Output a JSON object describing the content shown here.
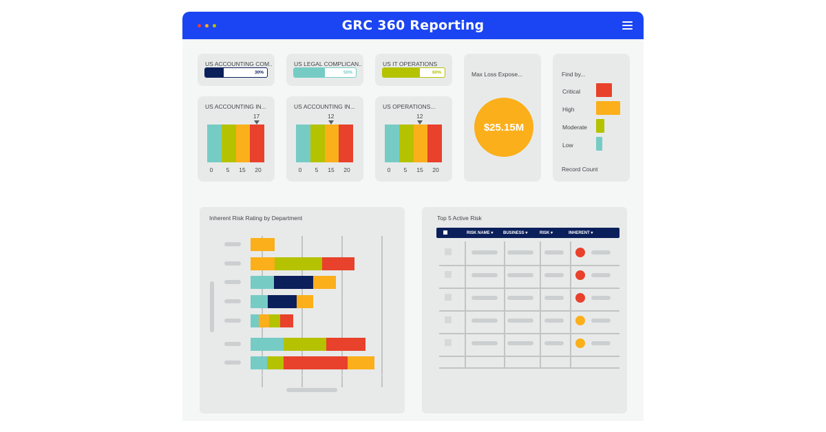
{
  "app": {
    "title": "GRC 360 Reporting",
    "window_dots": [
      "#e8413b",
      "#fbaf1a",
      "#b4c200"
    ]
  },
  "progress_cards": [
    {
      "title": "US ACCOUNTING  COM..",
      "percent": 30,
      "label": "30%",
      "color": "#0b1f5b"
    },
    {
      "title": "US LEGAL COMPLICAN..",
      "percent": 50,
      "label": "50%",
      "color": "#76ccc4"
    },
    {
      "title": "US IT OPERATIONS",
      "percent": 60,
      "label": "60%",
      "color": "#b4c200"
    }
  ],
  "gauge_cards": [
    {
      "title": "US ACCOUNTING  IN...",
      "marker_value": 17,
      "marker_label": "17"
    },
    {
      "title": "US ACCOUNTING  IN...",
      "marker_value": 12,
      "marker_label": "12"
    },
    {
      "title": "US OPERATIONS...",
      "marker_value": 12,
      "marker_label": "12"
    }
  ],
  "gauge_ticks": [
    "0",
    "5",
    "15",
    "20"
  ],
  "gauge_colors": [
    "#76ccc4",
    "#b4c200",
    "#fbaf1a",
    "#e8412c"
  ],
  "max_loss": {
    "title": "Max Loss Expose...",
    "value": "$25.15M"
  },
  "find_by": {
    "title": "Find by...",
    "items": [
      {
        "label": "Critical",
        "color": "#e8412c",
        "level": 0.65
      },
      {
        "label": "High",
        "color": "#fbaf1a",
        "level": 1.0
      },
      {
        "label": "Moderate",
        "color": "#b4c200",
        "level": 0.35
      },
      {
        "label": "Low",
        "color": "#76ccc4",
        "level": 0.25
      }
    ],
    "footer": "Record Count"
  },
  "chart_data": {
    "type": "bar",
    "title": "Inherent Risk Rating by Department",
    "orientation": "horizontal",
    "stacked": true,
    "categories": [
      "",
      "",
      "",
      "",
      "",
      "",
      ""
    ],
    "series": [
      {
        "color": "#76ccc4",
        "values": [
          0,
          0,
          3.4,
          2.5,
          1.2,
          4.8,
          2.4
        ]
      },
      {
        "color": "#fbaf1a",
        "values": [
          3.5,
          3.5,
          0,
          0,
          1.5,
          0,
          0
        ]
      },
      {
        "color": "#b4c200",
        "values": [
          0,
          6.8,
          0,
          0,
          1.6,
          6.1,
          2.4
        ]
      },
      {
        "color": "#0b1f5b",
        "values": [
          0,
          0,
          5.7,
          4.2,
          0,
          0,
          0
        ]
      },
      {
        "color": "#e8412c",
        "values": [
          0,
          4.7,
          0,
          0,
          1.9,
          5.7,
          9.2
        ]
      },
      {
        "color": "#fbaf1a",
        "values": [
          0,
          0,
          3.2,
          2.4,
          0,
          0,
          3.9
        ]
      }
    ],
    "xlim": [
      0,
      19
    ]
  },
  "top_risk": {
    "title": "Top 5 Active Risk",
    "columns": [
      "RISK NAME ▾",
      "BUSINESS ▾",
      "RISK ▾",
      "INHERENT ▾"
    ],
    "rows": [
      {
        "inherent_color": "#e8412c"
      },
      {
        "inherent_color": "#e8412c"
      },
      {
        "inherent_color": "#e8412c"
      },
      {
        "inherent_color": "#fbaf1a"
      },
      {
        "inherent_color": "#fbaf1a"
      }
    ]
  }
}
